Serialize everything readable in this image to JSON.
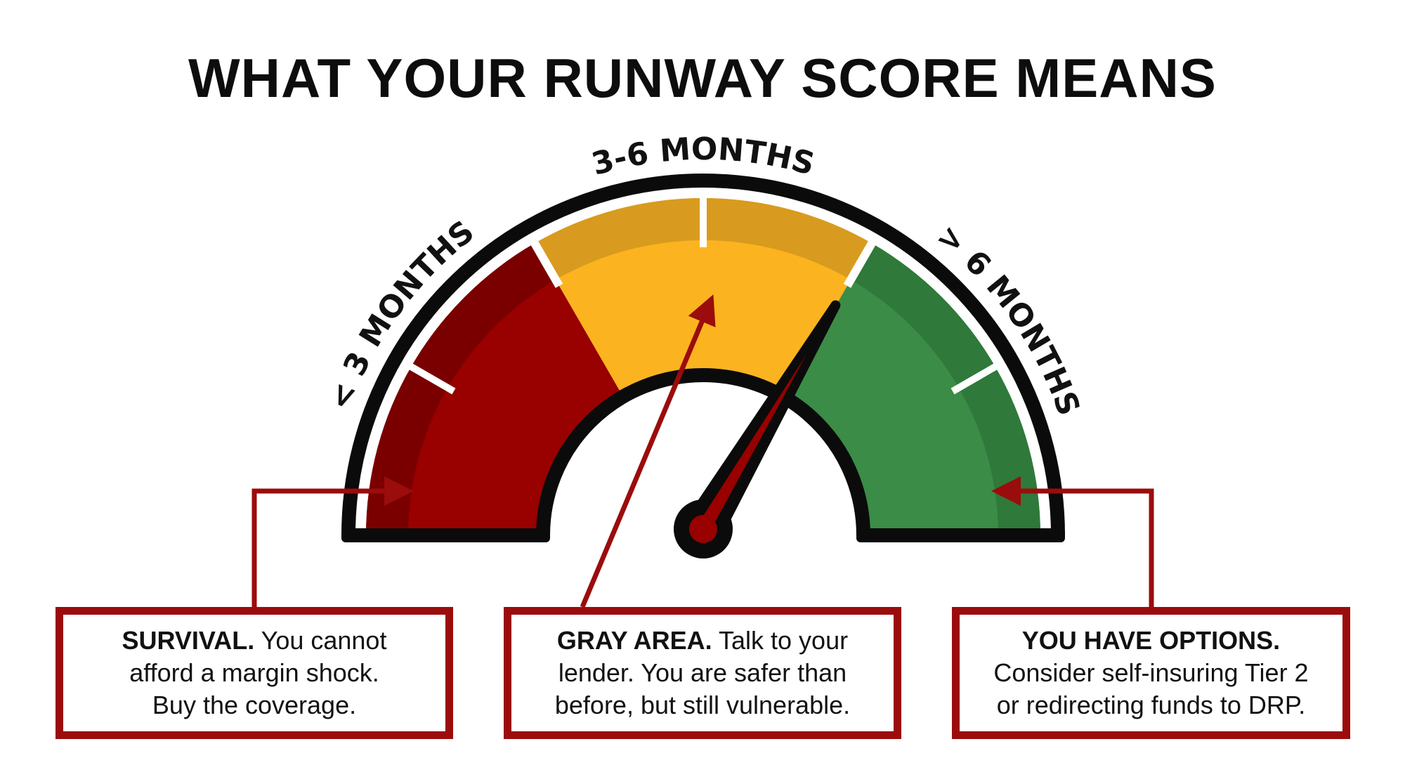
{
  "title": "WHAT YOUR RUNWAY SCORE MEANS",
  "gauge": {
    "zones": [
      {
        "label": "< 3 MONTHS",
        "color": "#990000",
        "band_color": "#7a0000"
      },
      {
        "label": "3-6 MONTHS",
        "color": "#fbb41f",
        "band_color": "#d89b1f"
      },
      {
        "label": "> 6 MONTHS",
        "color": "#3b8c46",
        "band_color": "#2f793a"
      }
    ],
    "needle_position_fraction": 0.67,
    "needle_color": "#990000"
  },
  "boxes": [
    {
      "heading": "SURVIVAL.",
      "lines": [
        "You cannot",
        "afford a margin shock.",
        "Buy the coverage."
      ]
    },
    {
      "heading": "GRAY AREA.",
      "lines": [
        "Talk to your",
        "lender. You are safer than",
        "before, but still vulnerable."
      ]
    },
    {
      "heading": "YOU HAVE OPTIONS.",
      "lines": [
        "",
        "Consider self-insuring Tier 2",
        "or redirecting funds to DRP."
      ]
    }
  ],
  "accent_color": "#9b0c0c"
}
